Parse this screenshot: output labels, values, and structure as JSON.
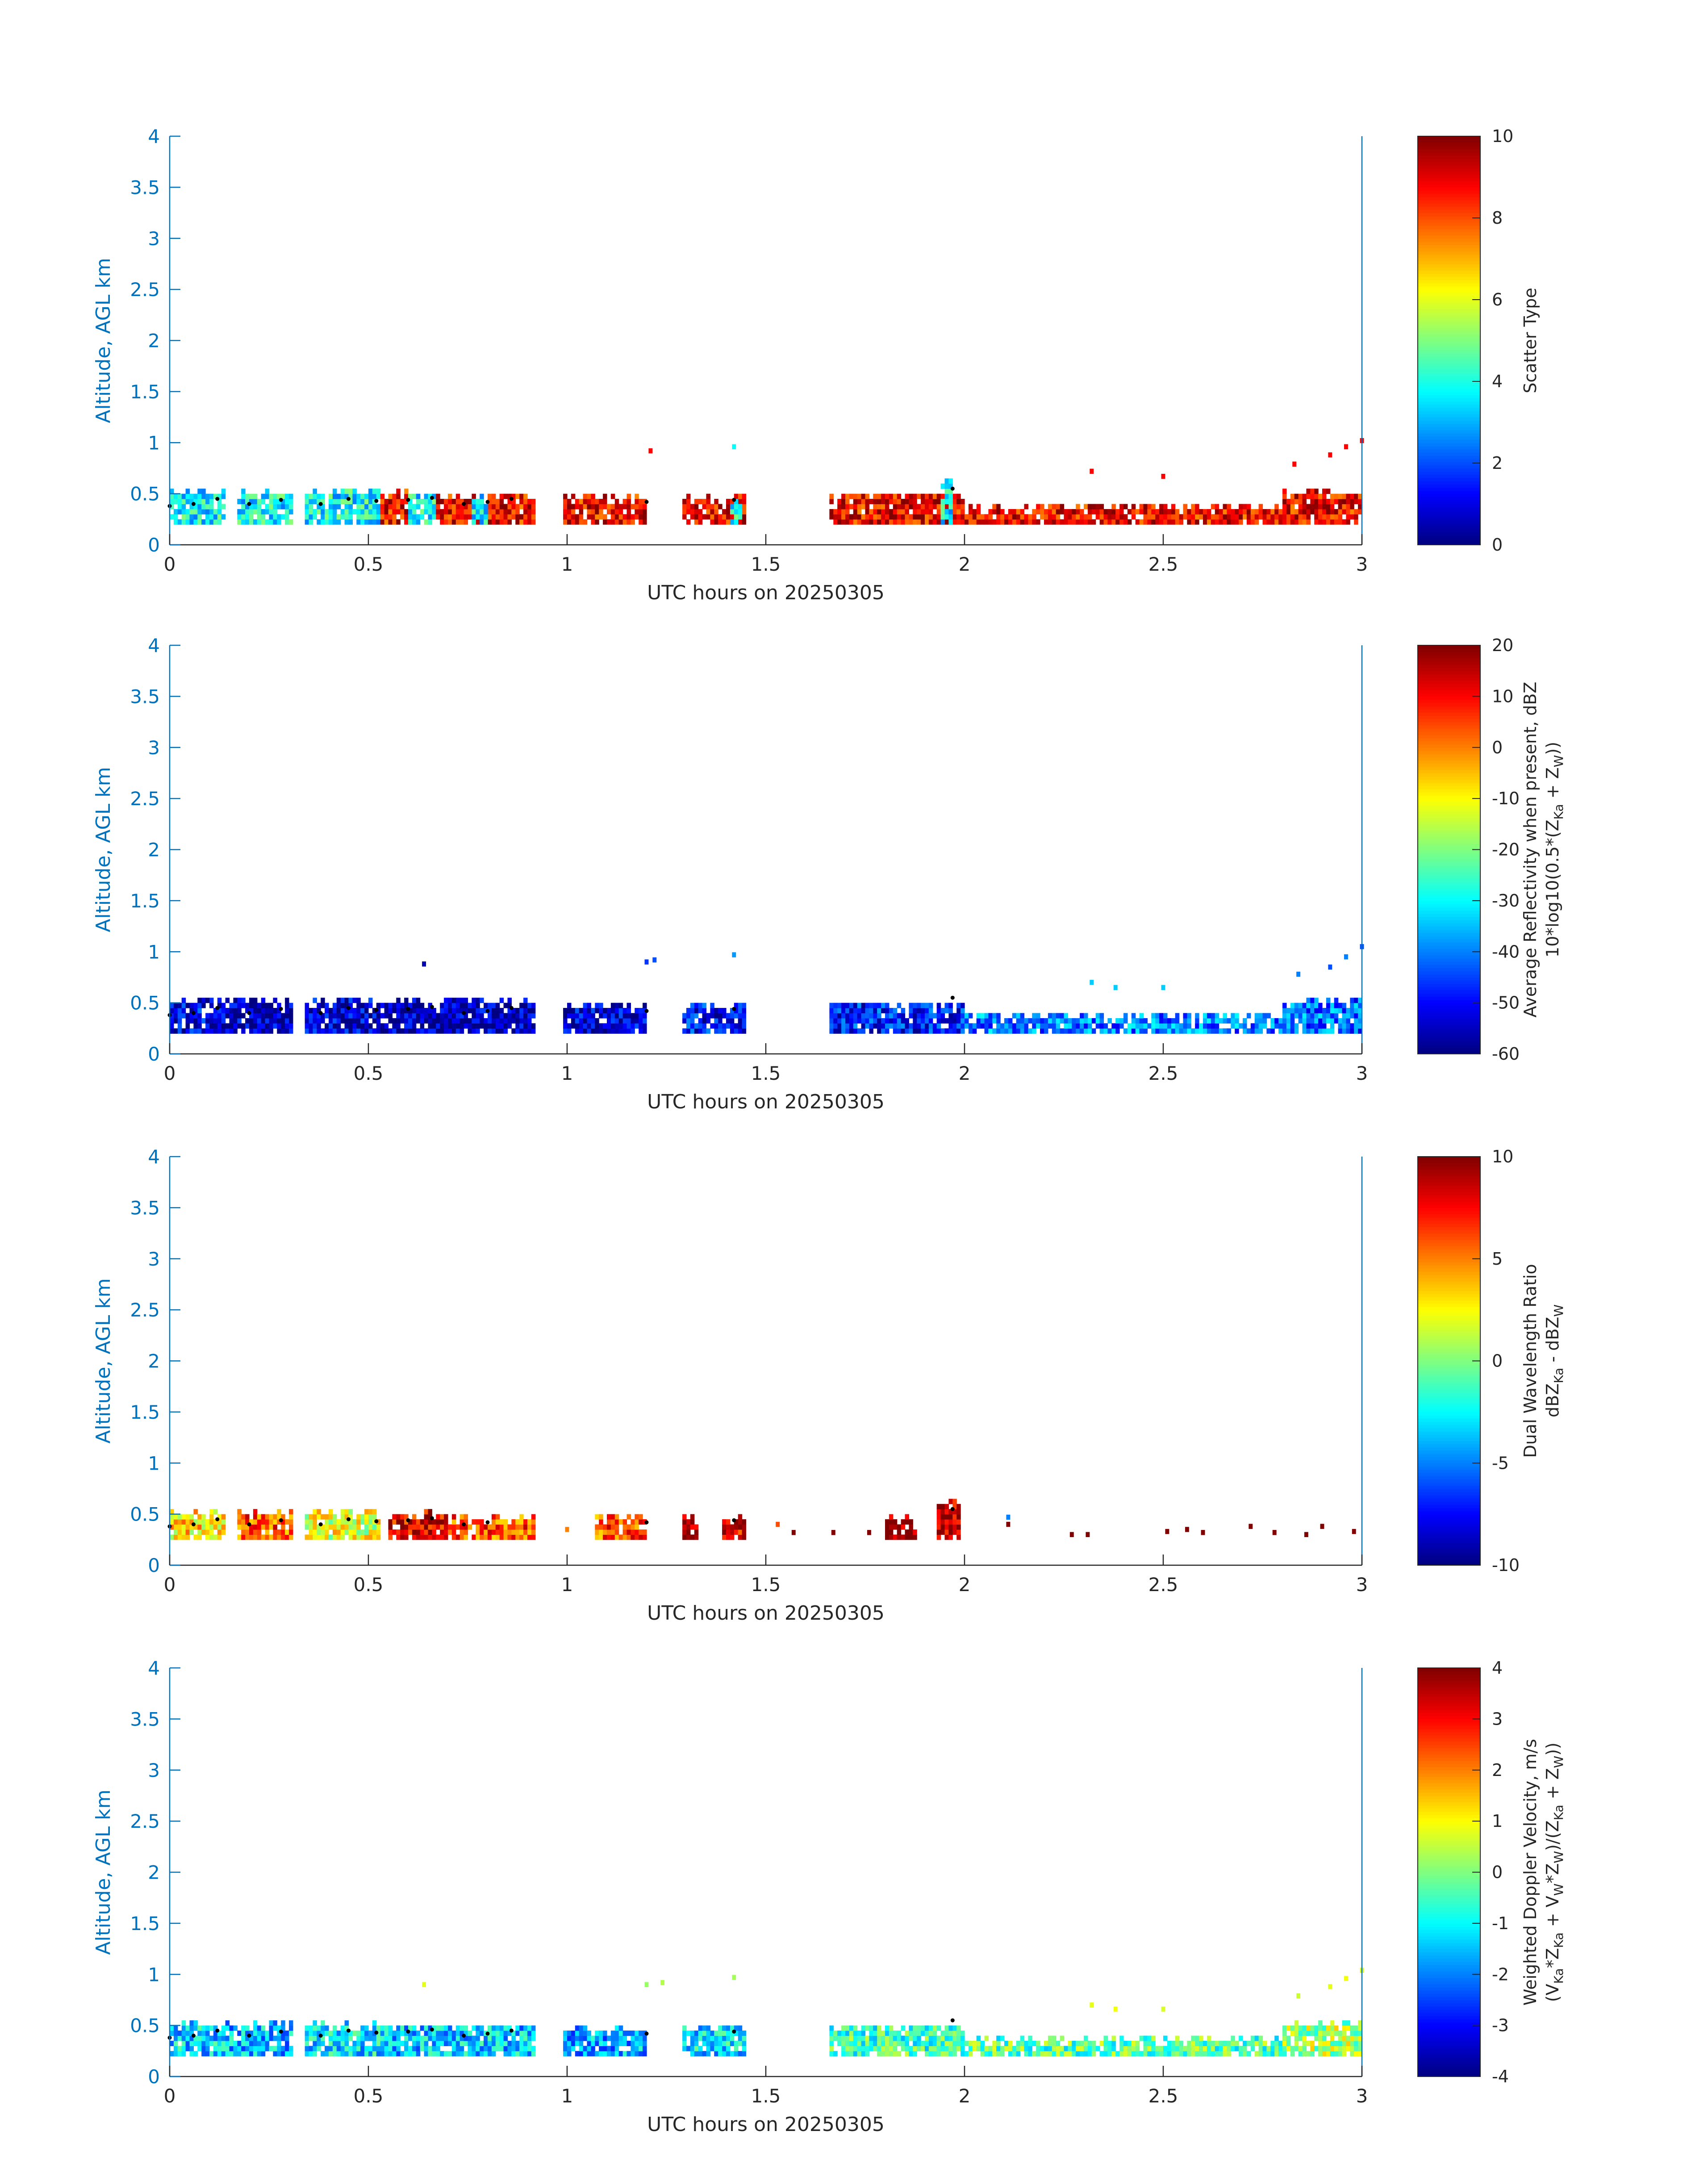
{
  "chart_data": [
    {
      "type": "heatmap",
      "id": "scatter-type",
      "xlabel": "UTC hours on 20250305",
      "ylabel": "Altitude, AGL km",
      "xlim": [
        0,
        3
      ],
      "ylim": [
        0,
        4
      ],
      "xticks": [
        "0",
        "0.5",
        "1",
        "1.5",
        "2",
        "2.5",
        "3"
      ],
      "yticks": [
        "0",
        "0.5",
        "1",
        "1.5",
        "2",
        "2.5",
        "3",
        "3.5",
        "4"
      ],
      "colorbar": {
        "label_lines": [
          "Scatter Type"
        ],
        "range": [
          0,
          10
        ],
        "ticks": [
          "0",
          "2",
          "4",
          "6",
          "8",
          "10"
        ]
      },
      "colormap": "jet",
      "segments": [
        {
          "x0": 0.0,
          "x1": 0.14,
          "y0": 0.2,
          "y1": 0.55,
          "value": 3.8
        },
        {
          "x0": 0.17,
          "x1": 0.31,
          "y0": 0.2,
          "y1": 0.55,
          "value": 3.8
        },
        {
          "x0": 0.34,
          "x1": 0.53,
          "y0": 0.2,
          "y1": 0.55,
          "value": 3.8
        },
        {
          "x0": 0.53,
          "x1": 0.6,
          "y0": 0.2,
          "y1": 0.55,
          "value": 8.8
        },
        {
          "x0": 0.6,
          "x1": 0.67,
          "y0": 0.2,
          "y1": 0.52,
          "value": 3.8
        },
        {
          "x0": 0.67,
          "x1": 0.92,
          "y0": 0.2,
          "y1": 0.5,
          "value": 8.8
        },
        {
          "x0": 0.76,
          "x1": 0.8,
          "y0": 0.2,
          "y1": 0.5,
          "value": 3.8
        },
        {
          "x0": 0.99,
          "x1": 1.2,
          "y0": 0.2,
          "y1": 0.48,
          "value": 8.8
        },
        {
          "x0": 1.29,
          "x1": 1.45,
          "y0": 0.2,
          "y1": 0.5,
          "value": 8.8
        },
        {
          "x0": 1.41,
          "x1": 1.44,
          "y0": 0.2,
          "y1": 0.45,
          "value": 3.8
        },
        {
          "x0": 1.66,
          "x1": 2.0,
          "y0": 0.2,
          "y1": 0.52,
          "value": 8.8
        },
        {
          "x0": 1.94,
          "x1": 1.97,
          "y0": 0.2,
          "y1": 0.65,
          "value": 3.8
        },
        {
          "x0": 2.0,
          "x1": 2.8,
          "y0": 0.2,
          "y1": 0.4,
          "value": 8.8
        },
        {
          "x0": 2.8,
          "x1": 3.0,
          "y0": 0.2,
          "y1": 0.55,
          "value": 8.8
        }
      ],
      "cells": [
        {
          "x": 1.21,
          "y": 0.92,
          "value": 8.8
        },
        {
          "x": 1.42,
          "y": 0.96,
          "value": 3.8
        },
        {
          "x": 2.32,
          "y": 0.72,
          "value": 8.8
        },
        {
          "x": 2.5,
          "y": 0.67,
          "value": 8.8
        },
        {
          "x": 2.83,
          "y": 0.79,
          "value": 8.8
        },
        {
          "x": 2.92,
          "y": 0.88,
          "value": 8.8
        },
        {
          "x": 2.96,
          "y": 0.96,
          "value": 8.8
        },
        {
          "x": 3.0,
          "y": 1.02,
          "value": 8.8
        }
      ],
      "markers": [
        {
          "x": 0.0,
          "y": 0.38
        },
        {
          "x": 0.06,
          "y": 0.4
        },
        {
          "x": 0.12,
          "y": 0.45
        },
        {
          "x": 0.2,
          "y": 0.4
        },
        {
          "x": 0.28,
          "y": 0.44
        },
        {
          "x": 0.38,
          "y": 0.4
        },
        {
          "x": 0.45,
          "y": 0.45
        },
        {
          "x": 0.52,
          "y": 0.43
        },
        {
          "x": 0.6,
          "y": 0.44
        },
        {
          "x": 0.66,
          "y": 0.46
        },
        {
          "x": 0.74,
          "y": 0.4
        },
        {
          "x": 0.8,
          "y": 0.42
        },
        {
          "x": 0.86,
          "y": 0.45
        },
        {
          "x": 1.2,
          "y": 0.42
        },
        {
          "x": 1.42,
          "y": 0.44
        },
        {
          "x": 1.97,
          "y": 0.55
        }
      ]
    },
    {
      "type": "heatmap",
      "id": "avg-reflectivity",
      "xlabel": "UTC hours on 20250305",
      "ylabel": "Altitude, AGL km",
      "xlim": [
        0,
        3
      ],
      "ylim": [
        0,
        4
      ],
      "xticks": [
        "0",
        "0.5",
        "1",
        "1.5",
        "2",
        "2.5",
        "3"
      ],
      "yticks": [
        "0",
        "0.5",
        "1",
        "1.5",
        "2",
        "2.5",
        "3",
        "3.5",
        "4"
      ],
      "colorbar": {
        "label_lines": [
          "Average Reflectivity when present, dBZ",
          "10*log10(0.5*(Z",
          "Ka",
          " + Z",
          "W",
          "))"
        ],
        "range": [
          -60,
          20
        ],
        "ticks": [
          "-60",
          "-50",
          "-40",
          "-30",
          "-20",
          "-10",
          "0",
          "10",
          "20"
        ]
      },
      "colormap": "jet",
      "segments": [
        {
          "x0": 0.0,
          "x1": 0.14,
          "y0": 0.2,
          "y1": 0.55,
          "value": -52
        },
        {
          "x0": 0.14,
          "x1": 0.31,
          "y0": 0.2,
          "y1": 0.55,
          "value": -56
        },
        {
          "x0": 0.34,
          "x1": 0.53,
          "y0": 0.2,
          "y1": 0.55,
          "value": -54
        },
        {
          "x0": 0.53,
          "x1": 0.92,
          "y0": 0.2,
          "y1": 0.55,
          "value": -56
        },
        {
          "x0": 0.99,
          "x1": 1.2,
          "y0": 0.2,
          "y1": 0.48,
          "value": -54
        },
        {
          "x0": 1.29,
          "x1": 1.45,
          "y0": 0.2,
          "y1": 0.5,
          "value": -50
        },
        {
          "x0": 1.66,
          "x1": 2.0,
          "y0": 0.2,
          "y1": 0.52,
          "value": -48
        },
        {
          "x0": 2.0,
          "x1": 2.8,
          "y0": 0.2,
          "y1": 0.4,
          "value": -40
        },
        {
          "x0": 2.8,
          "x1": 3.0,
          "y0": 0.2,
          "y1": 0.55,
          "value": -42
        }
      ],
      "cells": [
        {
          "x": 0.64,
          "y": 0.88,
          "value": -56
        },
        {
          "x": 1.2,
          "y": 0.9,
          "value": -46
        },
        {
          "x": 1.22,
          "y": 0.92,
          "value": -44
        },
        {
          "x": 1.42,
          "y": 0.97,
          "value": -38
        },
        {
          "x": 2.32,
          "y": 0.7,
          "value": -34
        },
        {
          "x": 2.38,
          "y": 0.65,
          "value": -34
        },
        {
          "x": 2.5,
          "y": 0.65,
          "value": -34
        },
        {
          "x": 2.84,
          "y": 0.78,
          "value": -40
        },
        {
          "x": 2.92,
          "y": 0.85,
          "value": -44
        },
        {
          "x": 2.96,
          "y": 0.95,
          "value": -40
        },
        {
          "x": 3.0,
          "y": 1.05,
          "value": -44
        }
      ],
      "markers": [
        {
          "x": 0.0,
          "y": 0.38
        },
        {
          "x": 0.06,
          "y": 0.4
        },
        {
          "x": 0.12,
          "y": 0.45
        },
        {
          "x": 0.2,
          "y": 0.4
        },
        {
          "x": 0.28,
          "y": 0.44
        },
        {
          "x": 0.38,
          "y": 0.4
        },
        {
          "x": 0.45,
          "y": 0.45
        },
        {
          "x": 0.52,
          "y": 0.43
        },
        {
          "x": 0.6,
          "y": 0.44
        },
        {
          "x": 0.66,
          "y": 0.46
        },
        {
          "x": 0.74,
          "y": 0.4
        },
        {
          "x": 0.8,
          "y": 0.42
        },
        {
          "x": 0.86,
          "y": 0.45
        },
        {
          "x": 1.2,
          "y": 0.42
        },
        {
          "x": 1.42,
          "y": 0.44
        },
        {
          "x": 1.97,
          "y": 0.55
        }
      ]
    },
    {
      "type": "heatmap",
      "id": "dual-wavelength-ratio",
      "xlabel": "UTC hours on 20250305",
      "ylabel": "Altitude, AGL km",
      "xlim": [
        0,
        3
      ],
      "ylim": [
        0,
        4
      ],
      "xticks": [
        "0",
        "0.5",
        "1",
        "1.5",
        "2",
        "2.5",
        "3"
      ],
      "yticks": [
        "0",
        "0.5",
        "1",
        "1.5",
        "2",
        "2.5",
        "3",
        "3.5",
        "4"
      ],
      "colorbar": {
        "label_lines": [
          "Dual Wavelength Ratio",
          "dBZ",
          "Ka",
          " - dBZ",
          "W"
        ],
        "range": [
          -10,
          10
        ],
        "ticks": [
          "-10",
          "-5",
          "0",
          "5",
          "10"
        ]
      },
      "colormap": "jet",
      "segments": [
        {
          "x0": 0.0,
          "x1": 0.14,
          "y0": 0.25,
          "y1": 0.55,
          "value": 3
        },
        {
          "x0": 0.17,
          "x1": 0.31,
          "y0": 0.25,
          "y1": 0.55,
          "value": 6
        },
        {
          "x0": 0.34,
          "x1": 0.53,
          "y0": 0.25,
          "y1": 0.55,
          "value": 2
        },
        {
          "x0": 0.55,
          "x1": 0.7,
          "y0": 0.25,
          "y1": 0.55,
          "value": 8
        },
        {
          "x0": 0.7,
          "x1": 0.92,
          "y0": 0.25,
          "y1": 0.5,
          "value": 6
        },
        {
          "x0": 1.07,
          "x1": 1.2,
          "y0": 0.25,
          "y1": 0.5,
          "value": 6
        },
        {
          "x0": 1.29,
          "x1": 1.33,
          "y0": 0.25,
          "y1": 0.5,
          "value": 10
        },
        {
          "x0": 1.39,
          "x1": 1.45,
          "y0": 0.25,
          "y1": 0.5,
          "value": 8
        },
        {
          "x0": 1.8,
          "x1": 1.88,
          "y0": 0.25,
          "y1": 0.5,
          "value": 10
        },
        {
          "x0": 1.93,
          "x1": 1.99,
          "y0": 0.25,
          "y1": 0.65,
          "value": 9
        }
      ],
      "cells": [
        {
          "x": 1.0,
          "y": 0.35,
          "value": 5
        },
        {
          "x": 1.53,
          "y": 0.4,
          "value": 6
        },
        {
          "x": 1.57,
          "y": 0.32,
          "value": 10
        },
        {
          "x": 1.67,
          "y": 0.32,
          "value": 10
        },
        {
          "x": 1.76,
          "y": 0.32,
          "value": 10
        },
        {
          "x": 2.11,
          "y": 0.47,
          "value": -5
        },
        {
          "x": 2.11,
          "y": 0.4,
          "value": 10
        },
        {
          "x": 2.27,
          "y": 0.3,
          "value": 10
        },
        {
          "x": 2.31,
          "y": 0.3,
          "value": 10
        },
        {
          "x": 2.51,
          "y": 0.33,
          "value": 10
        },
        {
          "x": 2.56,
          "y": 0.35,
          "value": 10
        },
        {
          "x": 2.6,
          "y": 0.32,
          "value": 10
        },
        {
          "x": 2.72,
          "y": 0.38,
          "value": 10
        },
        {
          "x": 2.78,
          "y": 0.32,
          "value": 10
        },
        {
          "x": 2.86,
          "y": 0.3,
          "value": 10
        },
        {
          "x": 2.9,
          "y": 0.38,
          "value": 10
        },
        {
          "x": 2.98,
          "y": 0.33,
          "value": 10
        }
      ],
      "markers": [
        {
          "x": 0.0,
          "y": 0.38
        },
        {
          "x": 0.06,
          "y": 0.4
        },
        {
          "x": 0.12,
          "y": 0.45
        },
        {
          "x": 0.2,
          "y": 0.4
        },
        {
          "x": 0.28,
          "y": 0.44
        },
        {
          "x": 0.38,
          "y": 0.4
        },
        {
          "x": 0.45,
          "y": 0.45
        },
        {
          "x": 0.52,
          "y": 0.43
        },
        {
          "x": 0.6,
          "y": 0.44
        },
        {
          "x": 0.66,
          "y": 0.46
        },
        {
          "x": 0.74,
          "y": 0.4
        },
        {
          "x": 0.8,
          "y": 0.42
        },
        {
          "x": 1.2,
          "y": 0.42
        },
        {
          "x": 1.42,
          "y": 0.44
        },
        {
          "x": 1.97,
          "y": 0.55
        }
      ]
    },
    {
      "type": "heatmap",
      "id": "weighted-doppler-velocity",
      "xlabel": "UTC hours on 20250305",
      "ylabel": "Altitude, AGL km",
      "xlim": [
        0,
        3
      ],
      "ylim": [
        0,
        4
      ],
      "xticks": [
        "0",
        "0.5",
        "1",
        "1.5",
        "2",
        "2.5",
        "3"
      ],
      "yticks": [
        "0",
        "0.5",
        "1",
        "1.5",
        "2",
        "2.5",
        "3",
        "3.5",
        "4"
      ],
      "colorbar": {
        "label_lines": [
          "Weighted Doppler Velocity, m/s",
          "(V",
          "Ka",
          "*Z",
          "Ka",
          " + V",
          "W",
          "*Z",
          "W",
          ")/(Z",
          "Ka",
          " + Z",
          "W",
          "))"
        ],
        "range": [
          -4,
          4
        ],
        "ticks": [
          "-4",
          "-3",
          "-2",
          "-1",
          "0",
          "1",
          "2",
          "3",
          "4"
        ]
      },
      "colormap": "jet",
      "segments": [
        {
          "x0": 0.0,
          "x1": 0.14,
          "y0": 0.2,
          "y1": 0.55,
          "value": -1.3
        },
        {
          "x0": 0.14,
          "x1": 0.31,
          "y0": 0.2,
          "y1": 0.55,
          "value": -1.5
        },
        {
          "x0": 0.34,
          "x1": 0.53,
          "y0": 0.2,
          "y1": 0.55,
          "value": -1.2
        },
        {
          "x0": 0.53,
          "x1": 0.92,
          "y0": 0.2,
          "y1": 0.52,
          "value": -1.4
        },
        {
          "x0": 0.99,
          "x1": 1.2,
          "y0": 0.2,
          "y1": 0.48,
          "value": -1.6
        },
        {
          "x0": 1.29,
          "x1": 1.45,
          "y0": 0.2,
          "y1": 0.5,
          "value": -1.2
        },
        {
          "x0": 1.66,
          "x1": 2.0,
          "y0": 0.2,
          "y1": 0.52,
          "value": -0.5
        },
        {
          "x0": 2.0,
          "x1": 2.8,
          "y0": 0.2,
          "y1": 0.4,
          "value": -0.3
        },
        {
          "x0": 2.8,
          "x1": 3.0,
          "y0": 0.2,
          "y1": 0.55,
          "value": 0.3
        }
      ],
      "cells": [
        {
          "x": 0.64,
          "y": 0.9,
          "value": 0.8
        },
        {
          "x": 1.2,
          "y": 0.9,
          "value": 0.2
        },
        {
          "x": 1.24,
          "y": 0.92,
          "value": 0.4
        },
        {
          "x": 1.42,
          "y": 0.97,
          "value": 0.3
        },
        {
          "x": 2.32,
          "y": 0.7,
          "value": 0.8
        },
        {
          "x": 2.38,
          "y": 0.66,
          "value": 0.9
        },
        {
          "x": 2.5,
          "y": 0.66,
          "value": 0.7
        },
        {
          "x": 2.84,
          "y": 0.79,
          "value": 0.6
        },
        {
          "x": 2.92,
          "y": 0.88,
          "value": 0.8
        },
        {
          "x": 2.96,
          "y": 0.96,
          "value": 0.9
        },
        {
          "x": 3.0,
          "y": 1.04,
          "value": 0.7
        }
      ],
      "markers": [
        {
          "x": 0.0,
          "y": 0.38
        },
        {
          "x": 0.06,
          "y": 0.4
        },
        {
          "x": 0.12,
          "y": 0.45
        },
        {
          "x": 0.2,
          "y": 0.4
        },
        {
          "x": 0.28,
          "y": 0.44
        },
        {
          "x": 0.38,
          "y": 0.4
        },
        {
          "x": 0.45,
          "y": 0.45
        },
        {
          "x": 0.52,
          "y": 0.43
        },
        {
          "x": 0.6,
          "y": 0.44
        },
        {
          "x": 0.66,
          "y": 0.46
        },
        {
          "x": 0.74,
          "y": 0.4
        },
        {
          "x": 0.8,
          "y": 0.42
        },
        {
          "x": 0.86,
          "y": 0.45
        },
        {
          "x": 1.2,
          "y": 0.42
        },
        {
          "x": 1.42,
          "y": 0.44
        },
        {
          "x": 1.97,
          "y": 0.55
        }
      ]
    }
  ],
  "colors": {
    "axis_y": "#0072BD",
    "axis_x": "#262626",
    "marker": "#000000"
  }
}
